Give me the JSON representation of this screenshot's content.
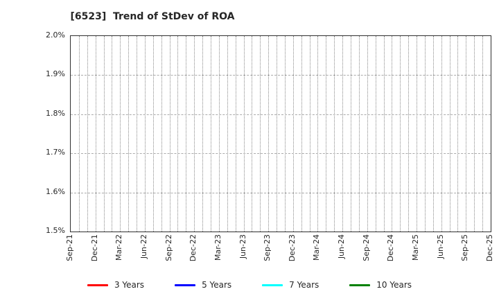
{
  "title": "[6523]  Trend of StDev of ROA",
  "chart_data": {
    "type": "line",
    "title": "[6523]  Trend of StDev of ROA",
    "xlabel": "",
    "ylabel": "",
    "x_ticks": [
      "Sep-21",
      "Dec-21",
      "Mar-22",
      "Jun-22",
      "Sep-22",
      "Dec-22",
      "Mar-23",
      "Jun-23",
      "Sep-23",
      "Dec-23",
      "Mar-24",
      "Jun-24",
      "Sep-24",
      "Dec-24",
      "Mar-25",
      "Jun-25",
      "Sep-25",
      "Dec-25"
    ],
    "y_ticks": [
      "2.0%",
      "1.9%",
      "1.8%",
      "1.7%",
      "1.6%",
      "1.5%"
    ],
    "ylim_percent": [
      1.5,
      2.0
    ],
    "minor_vgrid_per_major": 3,
    "grid": true,
    "legend_position": "bottom-center",
    "series": [
      {
        "name": "3 Years",
        "color": "#ff0000",
        "values": []
      },
      {
        "name": "5 Years",
        "color": "#0000ff",
        "values": []
      },
      {
        "name": "7 Years",
        "color": "#00ffff",
        "values": []
      },
      {
        "name": "10 Years",
        "color": "#008000",
        "values": []
      }
    ]
  },
  "colors": {
    "frame": "#2e2e2e",
    "vgrid": "#888888",
    "hgrid": "#aaaaaa",
    "text": "#262626",
    "background": "#ffffff"
  }
}
